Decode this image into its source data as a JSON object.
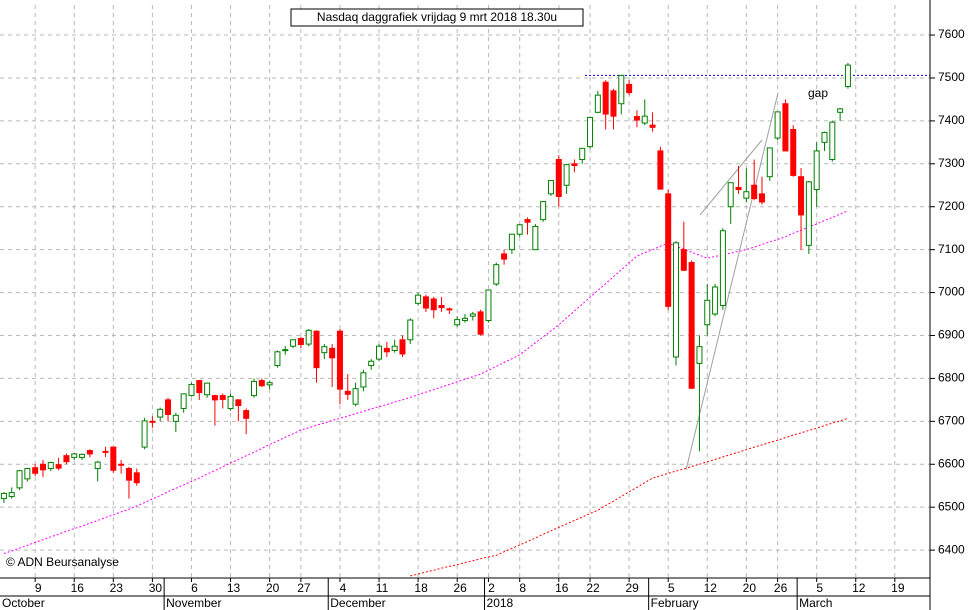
{
  "chart_data": {
    "type": "candlestick",
    "title": "Nasdaq daggrafiek vrijdag 9 mrt 2018 18.30u",
    "credit": "© ADN Beursanalyse",
    "annotation": "gap",
    "x_groups": [
      "October",
      "November",
      "December",
      "2018",
      "February",
      "March"
    ],
    "categories": [
      null,
      null,
      null,
      null,
      "9",
      null,
      null,
      null,
      null,
      "16",
      null,
      null,
      null,
      null,
      "23",
      null,
      null,
      null,
      null,
      "30",
      null,
      null,
      null,
      null,
      "6",
      null,
      null,
      null,
      null,
      "13",
      null,
      null,
      null,
      null,
      "20",
      null,
      null,
      null,
      "27",
      null,
      null,
      null,
      null,
      "4",
      null,
      null,
      null,
      null,
      "11",
      null,
      null,
      null,
      null,
      "18",
      null,
      null,
      null,
      null,
      "26",
      null,
      null,
      null,
      "2",
      null,
      null,
      null,
      "8",
      null,
      null,
      null,
      null,
      "16",
      null,
      null,
      null,
      "22",
      null,
      null,
      null,
      null,
      "29",
      null,
      null,
      null,
      null,
      "5",
      null,
      null,
      null,
      null,
      "12",
      null,
      null,
      null,
      null,
      "20",
      null,
      null,
      null,
      "26",
      null,
      null,
      null,
      null,
      "5",
      null,
      null,
      null,
      null,
      "12",
      null,
      null,
      null,
      null,
      "19",
      null,
      null,
      null,
      null
    ],
    "open": [
      6520,
      6525,
      6545,
      6566,
      6592,
      6600,
      6590,
      6599,
      6620,
      6616,
      6616,
      6632,
      6590,
      6630,
      6640,
      6600,
      6590,
      6580,
      6640,
      6700,
      6710,
      6750,
      6700,
      6730,
      6760,
      6795,
      6762,
      6760,
      6760,
      6730,
      6750,
      6725,
      6760,
      6795,
      6785,
      6830,
      6865,
      6875,
      6893,
      6880,
      6910,
      6860,
      6870,
      6910,
      6770,
      6740,
      6780,
      6830,
      6845,
      6870,
      6865,
      6890,
      6890,
      6975,
      6990,
      6985,
      6970,
      6962,
      6925,
      6935,
      6945,
      6955,
      6935,
      7020,
      7090,
      7100,
      7136,
      7170,
      7100,
      7170,
      7230,
      7310,
      7250,
      7300,
      7310,
      7340,
      7420,
      7490,
      7470,
      7440,
      7485,
      7410,
      7395,
      7390,
      7330,
      7230,
      6850,
      7100,
      7070,
      6835,
      6925,
      6950,
      6970,
      7200,
      7245,
      7220,
      7250,
      7230,
      7270,
      7360,
      7440,
      7380,
      7270,
      7110,
      7240,
      7350,
      7310,
      7420,
      7480,
      null,
      null,
      null,
      null,
      null,
      null,
      null,
      null,
      null,
      null
    ],
    "high": [
      6535,
      6546,
      6587,
      6592,
      6600,
      6610,
      6606,
      6615,
      6625,
      6627,
      6625,
      6635,
      6608,
      6641,
      6641,
      6610,
      6594,
      6590,
      6708,
      6712,
      6732,
      6755,
      6720,
      6765,
      6790,
      6796,
      6790,
      6762,
      6765,
      6765,
      6752,
      6730,
      6800,
      6800,
      6795,
      6865,
      6875,
      6890,
      6896,
      6915,
      6912,
      6880,
      6880,
      6915,
      6810,
      6790,
      6820,
      6845,
      6880,
      6885,
      6890,
      6900,
      6940,
      7000,
      6995,
      6990,
      6990,
      6965,
      6945,
      6950,
      6955,
      6960,
      7006,
      7070,
      7100,
      7137,
      7160,
      7175,
      7160,
      7212,
      7261,
      7320,
      7300,
      7310,
      7336,
      7410,
      7470,
      7495,
      7475,
      7506,
      7495,
      7425,
      7450,
      7420,
      7340,
      7240,
      7120,
      7165,
      7075,
      6900,
      7020,
      7020,
      7150,
      7256,
      7295,
      7290,
      7310,
      7270,
      7337,
      7421,
      7450,
      7390,
      7290,
      7260,
      7350,
      7375,
      7400,
      7430,
      7535,
      null,
      null,
      null,
      null,
      null,
      null,
      null,
      null,
      null,
      null
    ],
    "low": [
      6510,
      6520,
      6540,
      6560,
      6572,
      6570,
      6584,
      6586,
      6600,
      6610,
      6610,
      6616,
      6560,
      6617,
      6580,
      6578,
      6520,
      6550,
      6635,
      6685,
      6700,
      6700,
      6675,
      6720,
      6758,
      6750,
      6755,
      6690,
      6730,
      6725,
      6700,
      6670,
      6755,
      6780,
      6775,
      6825,
      6855,
      6870,
      6870,
      6875,
      6790,
      6845,
      6780,
      6740,
      6750,
      6735,
      6770,
      6820,
      6840,
      6850,
      6860,
      6850,
      6880,
      6970,
      6955,
      6940,
      6955,
      6950,
      6920,
      6930,
      6935,
      6900,
      6930,
      7015,
      7065,
      7090,
      7130,
      7135,
      7100,
      7165,
      7225,
      7200,
      7230,
      7280,
      7300,
      7335,
      7418,
      7380,
      7380,
      7415,
      7460,
      7385,
      7390,
      7375,
      7240,
      6960,
      6830,
      7050,
      6776,
      6630,
      6900,
      6945,
      6960,
      7160,
      7230,
      7210,
      7215,
      7205,
      7260,
      7355,
      7330,
      7270,
      7100,
      7090,
      7200,
      7330,
      7305,
      7400,
      7475,
      null,
      null,
      null,
      null,
      null,
      null,
      null,
      null,
      null,
      null
    ],
    "close": [
      6532,
      6534,
      6585,
      6590,
      6579,
      6587,
      6604,
      6591,
      6606,
      6624,
      6623,
      6624,
      6605,
      6629,
      6586,
      6598,
      6563,
      6557,
      6701,
      6698,
      6728,
      6716,
      6714,
      6764,
      6786,
      6767,
      6789,
      6750,
      6751,
      6758,
      6737,
      6707,
      6793,
      6783,
      6790,
      6862,
      6867,
      6890,
      6879,
      6912,
      6825,
      6874,
      6848,
      6775,
      6763,
      6776,
      6813,
      6840,
      6875,
      6862,
      6875,
      6857,
      6936,
      6994,
      6964,
      6960,
      6965,
      6960,
      6937,
      6940,
      6950,
      6903,
      7006,
      7065,
      7078,
      7136,
      7158,
      7164,
      7154,
      7212,
      7261,
      7224,
      7298,
      7296,
      7336,
      7408,
      7460,
      7416,
      7411,
      7506,
      7466,
      7402,
      7411,
      7385,
      7241,
      6968,
      7116,
      7052,
      6777,
      6874,
      6982,
      7013,
      7144,
      7256,
      7240,
      7235,
      7219,
      7211,
      7337,
      7421,
      7330,
      7273,
      7181,
      7258,
      7330,
      7373,
      7397,
      7428,
      7530,
      null,
      null,
      null,
      null,
      null,
      null,
      null,
      null,
      null,
      null
    ],
    "up_color": "#008000",
    "down_color": "#ff0000",
    "series": [
      {
        "color": "#ff00ff",
        "values": [
          6392,
          6398,
          6405,
          6411,
          6418,
          6424,
          6431,
          6437,
          6444,
          6450,
          6456,
          6463,
          6469,
          6476,
          6482,
          6489,
          6495,
          6503,
          6511,
          6519,
          6527,
          6536,
          6544,
          6552,
          6560,
          6568,
          6577,
          6585,
          6594,
          6603,
          6611,
          6620,
          6628,
          6637,
          6646,
          6654,
          6663,
          6671,
          6680,
          6685,
          6691,
          6696,
          6702,
          6707,
          6712,
          6718,
          6723,
          6729,
          6734,
          6739,
          6745,
          6750,
          6756,
          6762,
          6768,
          6774,
          6780,
          6786,
          6792,
          6798,
          6804,
          6810,
          6819,
          6828,
          6837,
          6846,
          6855,
          6869,
          6883,
          6897,
          6911,
          6925,
          6941,
          6957,
          6973,
          6989,
          7005,
          7021,
          7037,
          7053,
          7069,
          7085,
          7093,
          7100,
          7108,
          7115,
          7108,
          7101,
          7094,
          7087,
          7080,
          7084,
          7088,
          7092,
          7096,
          7100,
          7106,
          7112,
          7118,
          7124,
          7130,
          7138,
          7145,
          7153,
          7160,
          7168,
          7175,
          7183,
          7190,
          null,
          null,
          null,
          null,
          null,
          null,
          null,
          null,
          null,
          null
        ]
      },
      {
        "color": "#ff0000",
        "values": [
          null,
          null,
          null,
          null,
          null,
          null,
          null,
          null,
          null,
          null,
          null,
          null,
          null,
          null,
          null,
          null,
          null,
          null,
          null,
          null,
          null,
          null,
          null,
          null,
          null,
          null,
          null,
          null,
          null,
          null,
          null,
          null,
          null,
          null,
          null,
          null,
          null,
          null,
          null,
          null,
          null,
          null,
          null,
          null,
          null,
          null,
          null,
          null,
          null,
          null,
          null,
          null,
          6340,
          6344,
          6349,
          6353,
          6358,
          6362,
          6366,
          6371,
          6375,
          6380,
          6384,
          6388,
          6396,
          6404,
          6412,
          6420,
          6428,
          6437,
          6445,
          6453,
          6461,
          6469,
          6477,
          6485,
          6493,
          6504,
          6514,
          6525,
          6536,
          6546,
          6557,
          6568,
          6573,
          6579,
          6584,
          6589,
          6595,
          6600,
          6606,
          6611,
          6617,
          6623,
          6628,
          6634,
          6640,
          6645,
          6651,
          6656,
          6662,
          6668,
          6673,
          6679,
          6684,
          6690,
          6696,
          6701,
          6707,
          null,
          null,
          null,
          null,
          null,
          null,
          null,
          null,
          null,
          null
        ]
      }
    ],
    "level": 7506,
    "level_color": "#0000cc",
    "ylim": [
      6335,
      7670
    ],
    "yticks": [
      6400,
      6500,
      6600,
      6700,
      6800,
      6900,
      7000,
      7100,
      7200,
      7300,
      7400,
      7500,
      7600
    ],
    "grid": true
  }
}
